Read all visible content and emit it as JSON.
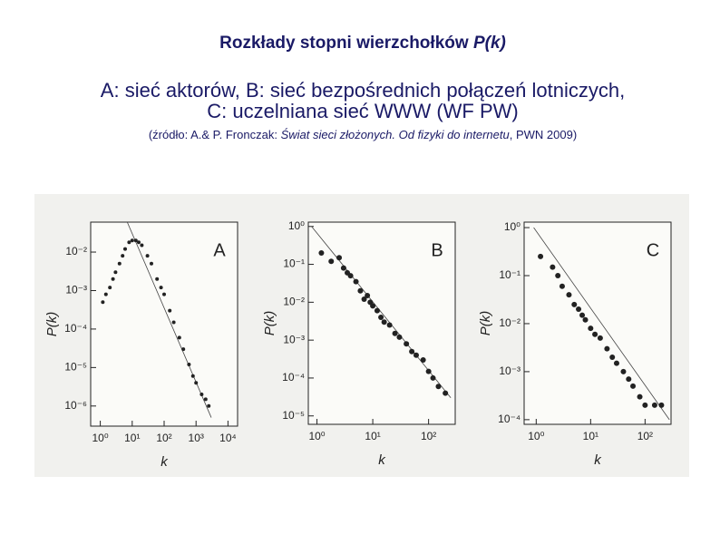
{
  "header": {
    "title": "Rozkłady stopni wierzchołków ",
    "title_var": "P(k)",
    "lines": [
      "A: sieć aktorów, B: sieć bezpośrednich połączeń lotniczych,",
      "C: uczelniana sieć WWW (WF PW)"
    ],
    "source": [
      "(źródło: A.& P. Fronczak: ",
      "Świat sieci złożonych. Od fizyki do internetu",
      ", PWN 2009)"
    ]
  },
  "chart_data": [
    {
      "type": "scatter",
      "annotation": "A",
      "xlabel": "k",
      "ylabel": "P(k)",
      "xlog": true,
      "ylog": true,
      "color": "#222",
      "xlim": [
        0.5,
        20000
      ],
      "ylim": [
        3e-07,
        0.06
      ],
      "xticks": [
        {
          "value": 1,
          "label": "10⁰"
        },
        {
          "value": 10,
          "label": "10¹"
        },
        {
          "value": 100,
          "label": "10²"
        },
        {
          "value": 1000,
          "label": "10³"
        },
        {
          "value": 10000,
          "label": "10⁴"
        }
      ],
      "yticks": [
        {
          "value": 1e-06,
          "label": "10⁻⁶"
        },
        {
          "value": 1e-05,
          "label": "10⁻⁵"
        },
        {
          "value": 0.0001,
          "label": "10⁻⁴"
        },
        {
          "value": 0.001,
          "label": "10⁻³"
        },
        {
          "value": 0.01,
          "label": "10⁻²"
        }
      ],
      "x": [
        1.2,
        1.5,
        2,
        2.5,
        3,
        4,
        5,
        6,
        8,
        10,
        13,
        16,
        20,
        30,
        40,
        60,
        80,
        100,
        150,
        200,
        300,
        400,
        600,
        800,
        1000,
        1500,
        2000,
        2500
      ],
      "values": [
        0.0005,
        0.0008,
        0.0012,
        0.002,
        0.003,
        0.005,
        0.008,
        0.012,
        0.018,
        0.02,
        0.02,
        0.018,
        0.015,
        0.008,
        0.005,
        0.002,
        0.0012,
        0.0008,
        0.0003,
        0.00015,
        6e-05,
        3e-05,
        1.2e-05,
        6e-06,
        4e-06,
        2e-06,
        1.5e-06,
        1e-06
      ],
      "fit_line": {
        "x": [
          7,
          3000
        ],
        "y": [
          0.06,
          5e-07
        ]
      }
    },
    {
      "type": "scatter",
      "annotation": "B",
      "xlabel": "k",
      "ylabel": "P(k)",
      "xlog": true,
      "ylog": true,
      "color": "#222",
      "xlim": [
        0.7,
        300
      ],
      "ylim": [
        6e-06,
        1.3
      ],
      "xticks": [
        {
          "value": 1,
          "label": "10⁰"
        },
        {
          "value": 10,
          "label": "10¹"
        },
        {
          "value": 100,
          "label": "10²"
        }
      ],
      "yticks": [
        {
          "value": 1e-05,
          "label": "10⁻⁵"
        },
        {
          "value": 0.0001,
          "label": "10⁻⁴"
        },
        {
          "value": 0.001,
          "label": "10⁻³"
        },
        {
          "value": 0.01,
          "label": "10⁻²"
        },
        {
          "value": 0.1,
          "label": "10⁻¹"
        },
        {
          "value": 1,
          "label": "10⁰"
        }
      ],
      "x": [
        1.2,
        1.8,
        2.5,
        3,
        3.5,
        4,
        5,
        6,
        7,
        8,
        9,
        10,
        12,
        14,
        16,
        20,
        25,
        30,
        40,
        50,
        60,
        80,
        100,
        120,
        150,
        200
      ],
      "values": [
        0.2,
        0.12,
        0.15,
        0.08,
        0.06,
        0.05,
        0.035,
        0.02,
        0.012,
        0.015,
        0.01,
        0.008,
        0.006,
        0.004,
        0.003,
        0.0025,
        0.0015,
        0.0012,
        0.0008,
        0.0005,
        0.0004,
        0.0003,
        0.00015,
        0.0001,
        6e-05,
        4e-05
      ],
      "fit_line": {
        "x": [
          0.8,
          250
        ],
        "y": [
          1.0,
          3e-05
        ]
      }
    },
    {
      "type": "scatter",
      "annotation": "C",
      "xlabel": "k",
      "ylabel": "P(k)",
      "xlog": true,
      "ylog": true,
      "color": "#222",
      "xlim": [
        0.6,
        300
      ],
      "ylim": [
        8e-05,
        1.3
      ],
      "xticks": [
        {
          "value": 1,
          "label": "10⁰"
        },
        {
          "value": 10,
          "label": "10¹"
        },
        {
          "value": 100,
          "label": "10²"
        }
      ],
      "yticks": [
        {
          "value": 0.0001,
          "label": "10⁻⁴"
        },
        {
          "value": 0.001,
          "label": "10⁻³"
        },
        {
          "value": 0.01,
          "label": "10⁻²"
        },
        {
          "value": 0.1,
          "label": "10⁻¹"
        },
        {
          "value": 1,
          "label": "10⁰"
        }
      ],
      "x": [
        1.2,
        2,
        2.5,
        3,
        4,
        5,
        6,
        7,
        8,
        10,
        12,
        15,
        20,
        25,
        30,
        40,
        50,
        60,
        80,
        100,
        150,
        200
      ],
      "values": [
        0.25,
        0.15,
        0.1,
        0.06,
        0.04,
        0.025,
        0.02,
        0.015,
        0.012,
        0.008,
        0.006,
        0.005,
        0.003,
        0.002,
        0.0015,
        0.001,
        0.0007,
        0.0005,
        0.0003,
        0.0002,
        0.0002,
        0.0002
      ],
      "fit_line": {
        "x": [
          0.9,
          280
        ],
        "y": [
          1.0,
          0.0001
        ]
      }
    }
  ]
}
